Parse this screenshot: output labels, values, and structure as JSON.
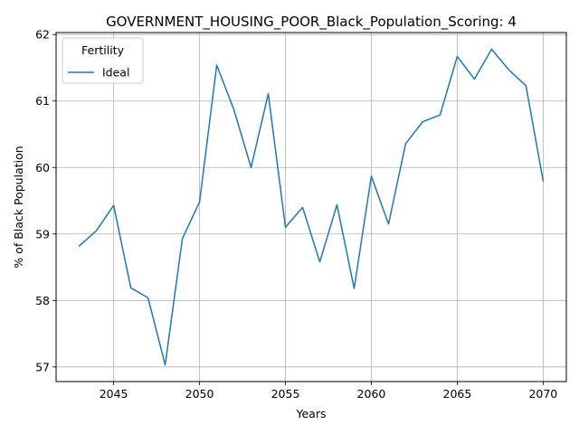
{
  "chart_data": {
    "type": "line",
    "title": "GOVERNMENT_HOUSING_POOR_Black_Population_Scoring: 4",
    "xlabel": "Years",
    "ylabel": "% of Black Population",
    "xlim": [
      2041.65,
      2071.35
    ],
    "ylim": [
      56.78,
      62.03
    ],
    "xticks": [
      2045,
      2050,
      2055,
      2060,
      2065,
      2070
    ],
    "yticks": [
      57,
      58,
      59,
      60,
      61,
      62
    ],
    "grid": true,
    "legend": {
      "title": "Fertility",
      "position": "top-left"
    },
    "series": [
      {
        "name": "Ideal",
        "color": "#1f77b4",
        "x": [
          2043,
          2044,
          2045,
          2046,
          2047,
          2048,
          2049,
          2050,
          2051,
          2052,
          2053,
          2054,
          2055,
          2056,
          2057,
          2058,
          2059,
          2060,
          2061,
          2062,
          2063,
          2064,
          2065,
          2066,
          2067,
          2068,
          2069,
          2070
        ],
        "y": [
          58.82,
          59.05,
          59.43,
          58.19,
          58.04,
          57.03,
          58.93,
          59.48,
          61.54,
          60.87,
          60.0,
          61.11,
          59.1,
          59.4,
          58.58,
          59.44,
          58.18,
          59.87,
          59.15,
          60.36,
          60.69,
          60.79,
          61.67,
          61.33,
          61.78,
          61.47,
          61.23,
          59.8
        ]
      }
    ]
  }
}
